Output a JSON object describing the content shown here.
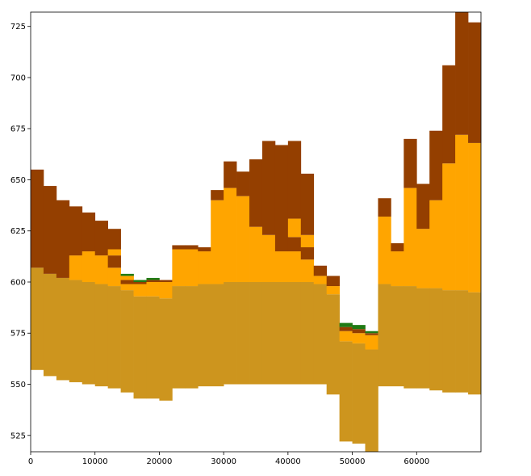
{
  "chart_data": {
    "type": "bar",
    "title": "",
    "xlabel": "",
    "ylabel": "",
    "xlim": [
      0,
      70000
    ],
    "ylim": [
      517,
      732
    ],
    "x_ticks": [
      0,
      10000,
      20000,
      30000,
      40000,
      50000,
      60000
    ],
    "x_tick_labels": [
      "0",
      "10000",
      "20000",
      "30000",
      "40000",
      "50000",
      "60000"
    ],
    "y_ticks": [
      525,
      550,
      575,
      600,
      625,
      650,
      675,
      700,
      725
    ],
    "y_tick_labels": [
      "525",
      "550",
      "575",
      "600",
      "625",
      "650",
      "675",
      "700",
      "725"
    ],
    "grid": false,
    "legend": "none",
    "bar_width": 2000,
    "layer_colors": {
      "base": "#CD951E",
      "orange": "#FFA500",
      "green": "#1F7A14",
      "brown": "#943F00"
    },
    "columns": [
      {
        "x_start": 0,
        "layers": [
          [
            557,
            607,
            "base"
          ],
          [
            607,
            655,
            "brown"
          ]
        ]
      },
      {
        "x_start": 2000,
        "layers": [
          [
            554,
            604,
            "base"
          ],
          [
            604,
            647,
            "brown"
          ]
        ]
      },
      {
        "x_start": 4000,
        "layers": [
          [
            552,
            602,
            "base"
          ],
          [
            602,
            640,
            "brown"
          ]
        ]
      },
      {
        "x_start": 6000,
        "layers": [
          [
            551,
            601,
            "base"
          ],
          [
            601,
            613,
            "orange"
          ],
          [
            613,
            637,
            "brown"
          ]
        ]
      },
      {
        "x_start": 8000,
        "layers": [
          [
            550,
            600,
            "base"
          ],
          [
            600,
            615,
            "orange"
          ],
          [
            615,
            634,
            "brown"
          ]
        ]
      },
      {
        "x_start": 10000,
        "layers": [
          [
            549,
            599,
            "base"
          ],
          [
            599,
            613,
            "orange"
          ],
          [
            613,
            630,
            "brown"
          ]
        ]
      },
      {
        "x_start": 12000,
        "layers": [
          [
            548,
            598,
            "base"
          ],
          [
            598,
            607,
            "orange"
          ],
          [
            607,
            613,
            "brown"
          ],
          [
            613,
            616,
            "orange"
          ],
          [
            616,
            626,
            "brown"
          ]
        ]
      },
      {
        "x_start": 14000,
        "layers": [
          [
            546,
            596,
            "base"
          ],
          [
            596,
            599,
            "orange"
          ],
          [
            599,
            601,
            "brown"
          ],
          [
            601,
            603,
            "orange"
          ],
          [
            603,
            604,
            "green"
          ]
        ]
      },
      {
        "x_start": 16000,
        "layers": [
          [
            543,
            593,
            "base"
          ],
          [
            593,
            599,
            "orange"
          ],
          [
            599,
            600,
            "brown"
          ],
          [
            600,
            601,
            "green"
          ]
        ]
      },
      {
        "x_start": 18000,
        "layers": [
          [
            543,
            593,
            "base"
          ],
          [
            593,
            600,
            "orange"
          ],
          [
            600,
            601,
            "brown"
          ],
          [
            601,
            602,
            "green"
          ]
        ]
      },
      {
        "x_start": 20000,
        "layers": [
          [
            542,
            592,
            "base"
          ],
          [
            592,
            600,
            "orange"
          ],
          [
            600,
            601,
            "brown"
          ]
        ]
      },
      {
        "x_start": 22000,
        "layers": [
          [
            548,
            598,
            "base"
          ],
          [
            598,
            616,
            "orange"
          ],
          [
            616,
            618,
            "brown"
          ]
        ]
      },
      {
        "x_start": 24000,
        "layers": [
          [
            548,
            598,
            "base"
          ],
          [
            598,
            616,
            "orange"
          ],
          [
            616,
            618,
            "brown"
          ]
        ]
      },
      {
        "x_start": 26000,
        "layers": [
          [
            549,
            599,
            "base"
          ],
          [
            599,
            615,
            "orange"
          ],
          [
            615,
            617,
            "brown"
          ]
        ]
      },
      {
        "x_start": 28000,
        "layers": [
          [
            549,
            599,
            "base"
          ],
          [
            599,
            640,
            "orange"
          ],
          [
            640,
            645,
            "brown"
          ]
        ]
      },
      {
        "x_start": 30000,
        "layers": [
          [
            550,
            600,
            "base"
          ],
          [
            600,
            646,
            "orange"
          ],
          [
            646,
            659,
            "brown"
          ]
        ]
      },
      {
        "x_start": 32000,
        "layers": [
          [
            550,
            600,
            "base"
          ],
          [
            600,
            642,
            "orange"
          ],
          [
            642,
            654,
            "brown"
          ]
        ]
      },
      {
        "x_start": 34000,
        "layers": [
          [
            550,
            600,
            "base"
          ],
          [
            600,
            627,
            "orange"
          ],
          [
            627,
            660,
            "brown"
          ]
        ]
      },
      {
        "x_start": 36000,
        "layers": [
          [
            550,
            600,
            "base"
          ],
          [
            600,
            623,
            "orange"
          ],
          [
            623,
            669,
            "brown"
          ]
        ]
      },
      {
        "x_start": 38000,
        "layers": [
          [
            550,
            600,
            "base"
          ],
          [
            600,
            615,
            "orange"
          ],
          [
            615,
            667,
            "brown"
          ]
        ]
      },
      {
        "x_start": 40000,
        "layers": [
          [
            550,
            600,
            "base"
          ],
          [
            600,
            615,
            "orange"
          ],
          [
            615,
            622,
            "brown"
          ],
          [
            622,
            631,
            "orange"
          ],
          [
            631,
            669,
            "brown"
          ]
        ]
      },
      {
        "x_start": 42000,
        "layers": [
          [
            550,
            600,
            "base"
          ],
          [
            600,
            611,
            "orange"
          ],
          [
            611,
            617,
            "brown"
          ],
          [
            617,
            623,
            "orange"
          ],
          [
            623,
            653,
            "brown"
          ]
        ]
      },
      {
        "x_start": 44000,
        "layers": [
          [
            550,
            599,
            "base"
          ],
          [
            599,
            603,
            "orange"
          ],
          [
            603,
            608,
            "brown"
          ]
        ]
      },
      {
        "x_start": 46000,
        "layers": [
          [
            545,
            594,
            "base"
          ],
          [
            594,
            598,
            "orange"
          ],
          [
            598,
            603,
            "brown"
          ]
        ]
      },
      {
        "x_start": 48000,
        "layers": [
          [
            522,
            571,
            "base"
          ],
          [
            571,
            576,
            "orange"
          ],
          [
            576,
            578,
            "brown"
          ],
          [
            578,
            580,
            "green"
          ]
        ]
      },
      {
        "x_start": 50000,
        "layers": [
          [
            521,
            570,
            "base"
          ],
          [
            570,
            575,
            "orange"
          ],
          [
            575,
            577,
            "brown"
          ],
          [
            577,
            579,
            "green"
          ]
        ]
      },
      {
        "x_start": 52000,
        "layers": [
          [
            517,
            567,
            "base"
          ],
          [
            567,
            574,
            "orange"
          ],
          [
            574,
            575,
            "brown"
          ],
          [
            575,
            576,
            "green"
          ]
        ]
      },
      {
        "x_start": 54000,
        "layers": [
          [
            549,
            599,
            "base"
          ],
          [
            599,
            632,
            "orange"
          ],
          [
            632,
            641,
            "brown"
          ]
        ]
      },
      {
        "x_start": 56000,
        "layers": [
          [
            549,
            598,
            "base"
          ],
          [
            598,
            615,
            "orange"
          ],
          [
            615,
            619,
            "brown"
          ]
        ]
      },
      {
        "x_start": 58000,
        "layers": [
          [
            548,
            598,
            "base"
          ],
          [
            598,
            646,
            "orange"
          ],
          [
            646,
            670,
            "brown"
          ]
        ]
      },
      {
        "x_start": 60000,
        "layers": [
          [
            548,
            597,
            "base"
          ],
          [
            597,
            626,
            "orange"
          ],
          [
            626,
            648,
            "brown"
          ]
        ]
      },
      {
        "x_start": 62000,
        "layers": [
          [
            547,
            597,
            "base"
          ],
          [
            597,
            640,
            "orange"
          ],
          [
            640,
            674,
            "brown"
          ]
        ]
      },
      {
        "x_start": 64000,
        "layers": [
          [
            546,
            596,
            "base"
          ],
          [
            596,
            658,
            "orange"
          ],
          [
            658,
            706,
            "brown"
          ]
        ]
      },
      {
        "x_start": 66000,
        "layers": [
          [
            546,
            596,
            "base"
          ],
          [
            596,
            672,
            "orange"
          ],
          [
            672,
            732,
            "brown"
          ]
        ]
      },
      {
        "x_start": 68000,
        "layers": [
          [
            545,
            595,
            "base"
          ],
          [
            595,
            668,
            "orange"
          ],
          [
            668,
            727,
            "brown"
          ]
        ]
      }
    ]
  }
}
